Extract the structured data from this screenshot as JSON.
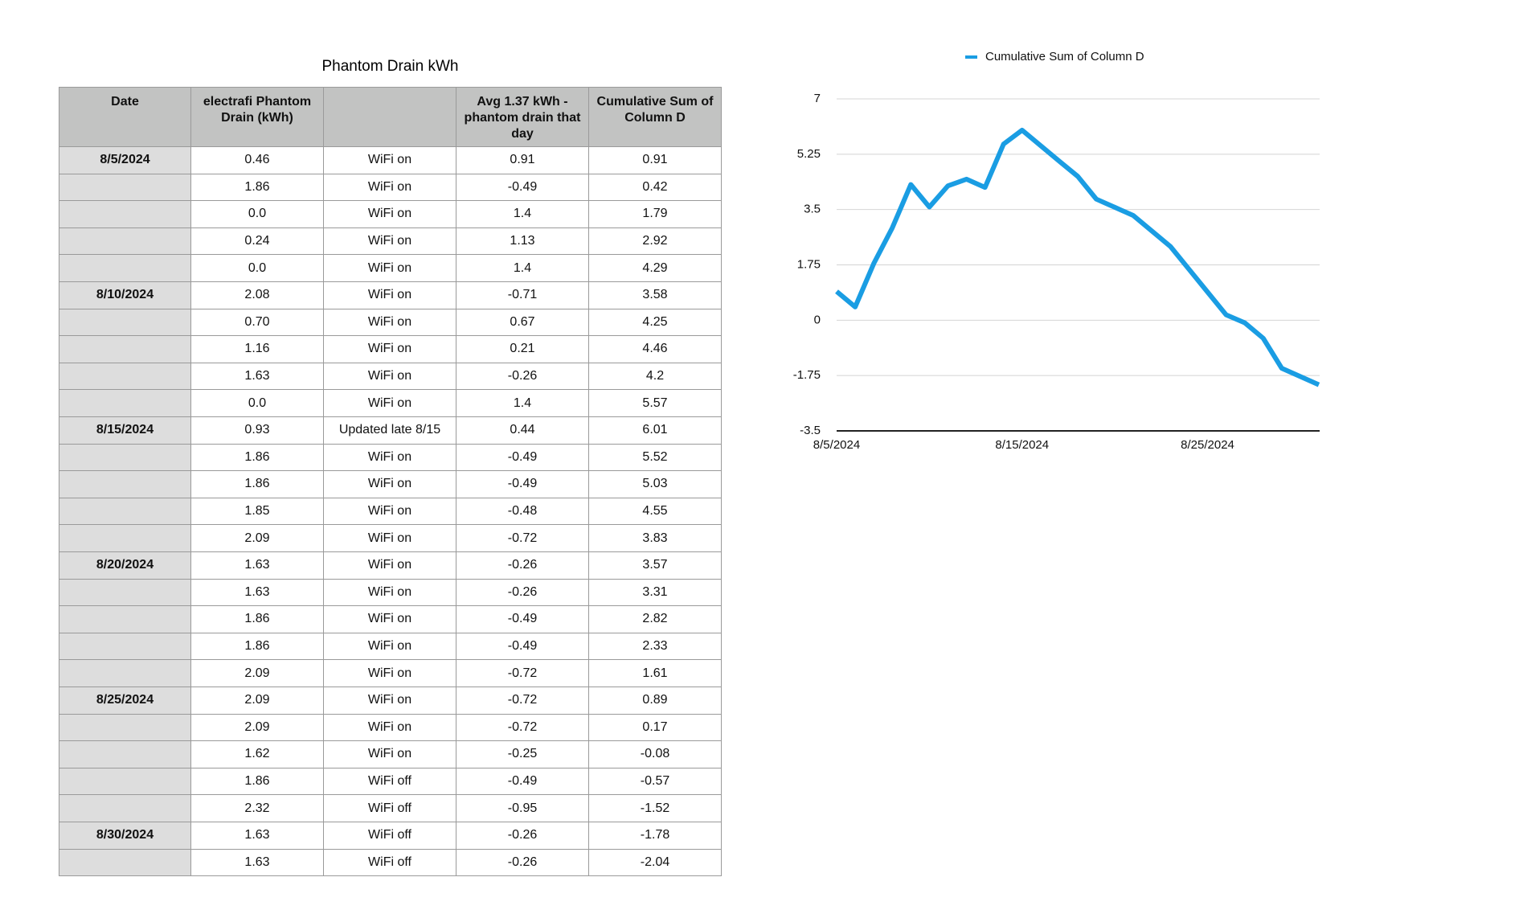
{
  "table": {
    "title": "Phantom Drain kWh",
    "header": [
      "Date",
      "electrafi Phantom Drain (kWh)",
      null,
      "Avg 1.37 kWh - phantom drain that day",
      "Cumulative Sum of Column D"
    ],
    "rows": [
      [
        "8/5/2024",
        "0.46",
        "WiFi on",
        "0.91",
        "0.91"
      ],
      [
        null,
        "1.86",
        "WiFi on",
        "-0.49",
        "0.42"
      ],
      [
        null,
        "0.0",
        "WiFi on",
        "1.4",
        "1.79"
      ],
      [
        null,
        "0.24",
        "WiFi on",
        "1.13",
        "2.92"
      ],
      [
        null,
        "0.0",
        "WiFi on",
        "1.4",
        "4.29"
      ],
      [
        "8/10/2024",
        "2.08",
        "WiFi on",
        "-0.71",
        "3.58"
      ],
      [
        null,
        "0.70",
        "WiFi on",
        "0.67",
        "4.25"
      ],
      [
        null,
        "1.16",
        "WiFi on",
        "0.21",
        "4.46"
      ],
      [
        null,
        "1.63",
        "WiFi on",
        "-0.26",
        "4.2"
      ],
      [
        null,
        "0.0",
        "WiFi on",
        "1.4",
        "5.57"
      ],
      [
        "8/15/2024",
        "0.93",
        "Updated late 8/15",
        "0.44",
        "6.01"
      ],
      [
        null,
        "1.86",
        "WiFi on",
        "-0.49",
        "5.52"
      ],
      [
        null,
        "1.86",
        "WiFi on",
        "-0.49",
        "5.03"
      ],
      [
        null,
        "1.85",
        "WiFi on",
        "-0.48",
        "4.55"
      ],
      [
        null,
        "2.09",
        "WiFi on",
        "-0.72",
        "3.83"
      ],
      [
        "8/20/2024",
        "1.63",
        "WiFi on",
        "-0.26",
        "3.57"
      ],
      [
        null,
        "1.63",
        "WiFi on",
        "-0.26",
        "3.31"
      ],
      [
        null,
        "1.86",
        "WiFi on",
        "-0.49",
        "2.82"
      ],
      [
        null,
        "1.86",
        "WiFi on",
        "-0.49",
        "2.33"
      ],
      [
        null,
        "2.09",
        "WiFi on",
        "-0.72",
        "1.61"
      ],
      [
        "8/25/2024",
        "2.09",
        "WiFi on",
        "-0.72",
        "0.89"
      ],
      [
        null,
        "2.09",
        "WiFi on",
        "-0.72",
        "0.17"
      ],
      [
        null,
        "1.62",
        "WiFi on",
        "-0.25",
        "-0.08"
      ],
      [
        null,
        "1.86",
        "WiFi off",
        "-0.49",
        "-0.57"
      ],
      [
        null,
        "2.32",
        "WiFi off",
        "-0.95",
        "-1.52"
      ],
      [
        "8/30/2024",
        "1.63",
        "WiFi off",
        "-0.26",
        "-1.78"
      ],
      [
        null,
        "1.63",
        "WiFi off",
        "-0.26",
        "-2.04"
      ]
    ]
  },
  "chart_data": {
    "type": "line",
    "x": [
      "2024-08-05",
      "2024-08-06",
      "2024-08-07",
      "2024-08-08",
      "2024-08-09",
      "2024-08-10",
      "2024-08-11",
      "2024-08-12",
      "2024-08-13",
      "2024-08-14",
      "2024-08-15",
      "2024-08-16",
      "2024-08-17",
      "2024-08-18",
      "2024-08-19",
      "2024-08-20",
      "2024-08-21",
      "2024-08-22",
      "2024-08-23",
      "2024-08-24",
      "2024-08-25",
      "2024-08-26",
      "2024-08-27",
      "2024-08-28",
      "2024-08-29",
      "2024-08-30",
      "2024-08-31"
    ],
    "series": [
      {
        "name": "Cumulative Sum of Column D",
        "color": "#1a9de3",
        "values": [
          0.91,
          0.42,
          1.79,
          2.92,
          4.29,
          3.58,
          4.25,
          4.46,
          4.2,
          5.57,
          6.01,
          5.52,
          5.03,
          4.55,
          3.83,
          3.57,
          3.31,
          2.82,
          2.33,
          1.61,
          0.89,
          0.17,
          -0.08,
          -0.57,
          -1.52,
          -1.78,
          -2.04
        ]
      }
    ],
    "xlim": [
      "2024-08-05",
      "2024-08-31"
    ],
    "xticks": [
      {
        "value": "2024-08-05",
        "label": "8/5/2024"
      },
      {
        "value": "2024-08-15",
        "label": "8/15/2024"
      },
      {
        "value": "2024-08-25",
        "label": "8/25/2024"
      }
    ],
    "ylim": [
      -3.5,
      7
    ],
    "yticks": [
      7,
      5.25,
      3.5,
      1.75,
      0,
      -1.75,
      -3.5
    ],
    "grid": true,
    "legend": "top"
  }
}
